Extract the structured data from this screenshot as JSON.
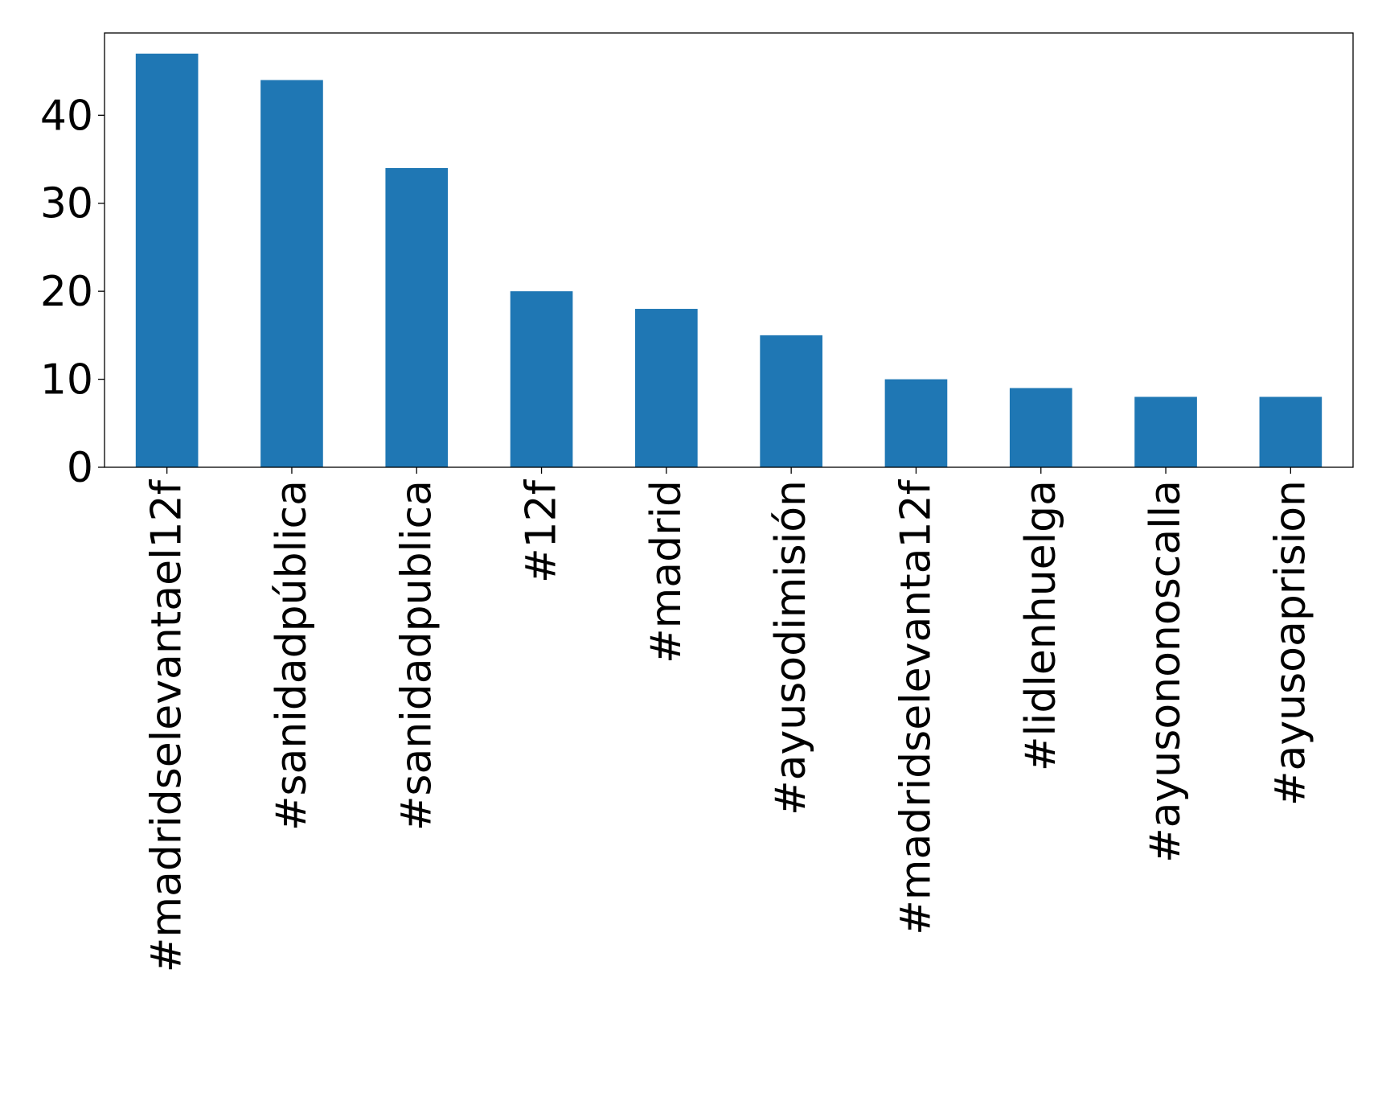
{
  "chart_data": {
    "type": "bar",
    "categories": [
      "#madridselevantael12f",
      "#sanidadpública",
      "#sanidadpublica",
      "#12f",
      "#madrid",
      "#ayusodimisión",
      "#madridselevanta12f",
      "#lidlenhuelga",
      "#ayusononoscalla",
      "#ayusoaprision"
    ],
    "values": [
      47,
      44,
      34,
      20,
      18,
      15,
      10,
      9,
      8,
      8
    ],
    "ylim": [
      0,
      49.35
    ],
    "yticks": [
      0,
      10,
      20,
      30,
      40
    ],
    "title": "",
    "xlabel": "",
    "ylabel": "",
    "grid": false,
    "legend": false,
    "colors": {
      "bar": "#1f77b4",
      "axes": "#000000",
      "background": "#ffffff"
    }
  }
}
